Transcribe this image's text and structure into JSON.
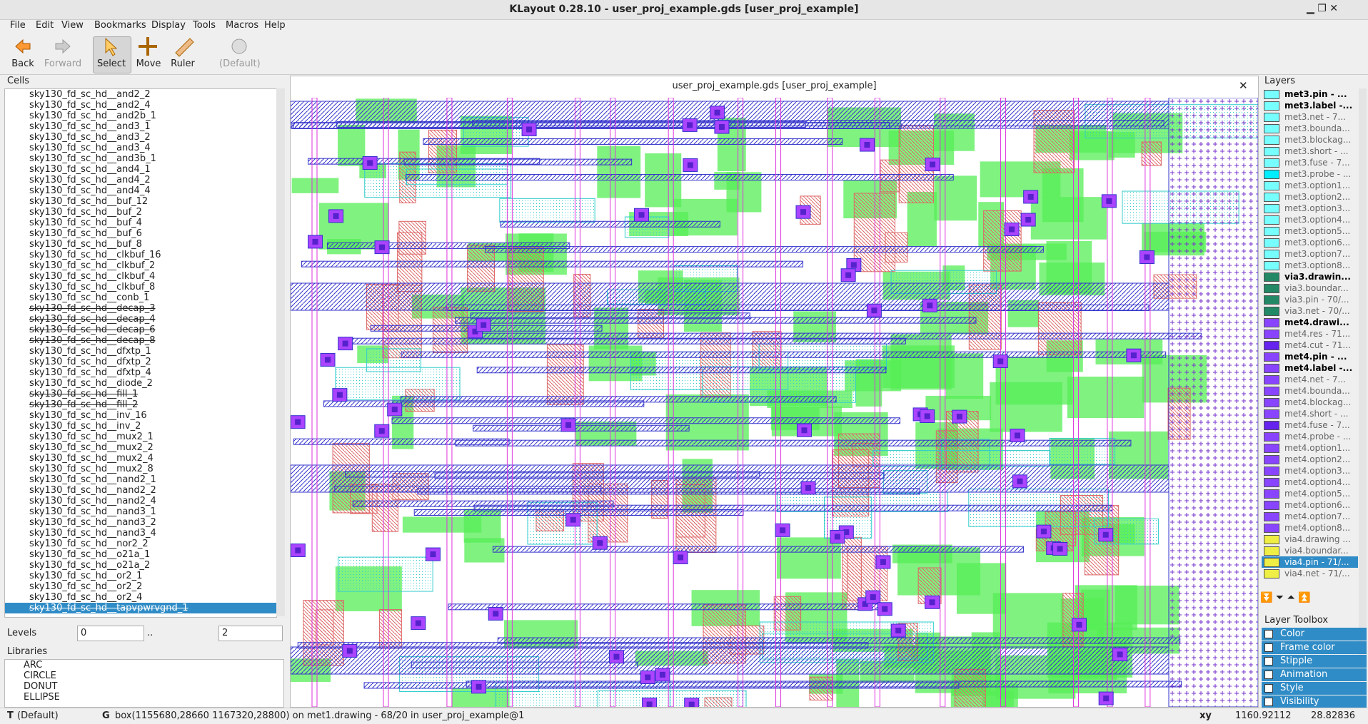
{
  "window": {
    "title": "KLayout 0.28.10 - user_proj_example.gds [user_proj_example]"
  },
  "menu": [
    "File",
    "Edit",
    "View",
    "Bookmarks",
    "Display",
    "Tools",
    "Macros",
    "Help"
  ],
  "toolbar": [
    "Back",
    "Forward",
    "Select",
    "Move",
    "Ruler",
    "(Default)"
  ],
  "cells": {
    "title": "Cells",
    "items": [
      {
        "name": "sky130_fd_sc_hd__and2_2"
      },
      {
        "name": "sky130_fd_sc_hd__and2_4"
      },
      {
        "name": "sky130_fd_sc_hd__and2b_1"
      },
      {
        "name": "sky130_fd_sc_hd__and3_1"
      },
      {
        "name": "sky130_fd_sc_hd__and3_2"
      },
      {
        "name": "sky130_fd_sc_hd__and3_4"
      },
      {
        "name": "sky130_fd_sc_hd__and3b_1"
      },
      {
        "name": "sky130_fd_sc_hd__and4_1"
      },
      {
        "name": "sky130_fd_sc_hd__and4_2"
      },
      {
        "name": "sky130_fd_sc_hd__and4_4"
      },
      {
        "name": "sky130_fd_sc_hd__buf_12"
      },
      {
        "name": "sky130_fd_sc_hd__buf_2"
      },
      {
        "name": "sky130_fd_sc_hd__buf_4"
      },
      {
        "name": "sky130_fd_sc_hd__buf_6"
      },
      {
        "name": "sky130_fd_sc_hd__buf_8"
      },
      {
        "name": "sky130_fd_sc_hd__clkbuf_16"
      },
      {
        "name": "sky130_fd_sc_hd__clkbuf_2"
      },
      {
        "name": "sky130_fd_sc_hd__clkbuf_4"
      },
      {
        "name": "sky130_fd_sc_hd__clkbuf_8"
      },
      {
        "name": "sky130_fd_sc_hd__conb_1"
      },
      {
        "name": "sky130_fd_sc_hd__decap_3",
        "struck": true
      },
      {
        "name": "sky130_fd_sc_hd__decap_4",
        "struck": true
      },
      {
        "name": "sky130_fd_sc_hd__decap_6",
        "struck": true
      },
      {
        "name": "sky130_fd_sc_hd__decap_8",
        "struck": true
      },
      {
        "name": "sky130_fd_sc_hd__dfxtp_1"
      },
      {
        "name": "sky130_fd_sc_hd__dfxtp_2"
      },
      {
        "name": "sky130_fd_sc_hd__dfxtp_4"
      },
      {
        "name": "sky130_fd_sc_hd__diode_2"
      },
      {
        "name": "sky130_fd_sc_hd__fill_1",
        "struck": true
      },
      {
        "name": "sky130_fd_sc_hd__fill_2",
        "struck": true
      },
      {
        "name": "sky130_fd_sc_hd__inv_16"
      },
      {
        "name": "sky130_fd_sc_hd__inv_2"
      },
      {
        "name": "sky130_fd_sc_hd__mux2_1"
      },
      {
        "name": "sky130_fd_sc_hd__mux2_2"
      },
      {
        "name": "sky130_fd_sc_hd__mux2_4"
      },
      {
        "name": "sky130_fd_sc_hd__mux2_8"
      },
      {
        "name": "sky130_fd_sc_hd__nand2_1"
      },
      {
        "name": "sky130_fd_sc_hd__nand2_2"
      },
      {
        "name": "sky130_fd_sc_hd__nand2_4"
      },
      {
        "name": "sky130_fd_sc_hd__nand3_1"
      },
      {
        "name": "sky130_fd_sc_hd__nand3_2"
      },
      {
        "name": "sky130_fd_sc_hd__nand3_4"
      },
      {
        "name": "sky130_fd_sc_hd__nor2_2"
      },
      {
        "name": "sky130_fd_sc_hd__o21a_1"
      },
      {
        "name": "sky130_fd_sc_hd__o21a_2"
      },
      {
        "name": "sky130_fd_sc_hd__or2_1"
      },
      {
        "name": "sky130_fd_sc_hd__or2_2"
      },
      {
        "name": "sky130_fd_sc_hd__or2_4"
      },
      {
        "name": "sky130_fd_sc_hd__tapvpwrvgnd_1",
        "struck": true,
        "selected": true
      }
    ]
  },
  "levels": {
    "label": "Levels",
    "from": "0",
    "sep": "..",
    "to": "2"
  },
  "libraries": {
    "title": "Libraries",
    "items": [
      "ARC",
      "CIRCLE",
      "DONUT",
      "ELLIPSE"
    ]
  },
  "view": {
    "title": "user_proj_example.gds [user_proj_example]"
  },
  "layers": {
    "title": "Layers",
    "items": [
      {
        "name": "met3.pin - ...",
        "color": "#7ff",
        "bold": true
      },
      {
        "name": "met3.label -...",
        "color": "#7ff",
        "bold": true
      },
      {
        "name": "met3.net - 7...",
        "color": "#7ff"
      },
      {
        "name": "met3.bounda...",
        "color": "#7ff"
      },
      {
        "name": "met3.blockag...",
        "color": "#7ff"
      },
      {
        "name": "met3.short - ...",
        "color": "#7ff"
      },
      {
        "name": "met3.fuse - 7...",
        "color": "#7ff"
      },
      {
        "name": "met3.probe - ...",
        "color": "#0ef"
      },
      {
        "name": "met3.option1...",
        "color": "#7ff"
      },
      {
        "name": "met3.option2...",
        "color": "#7ff"
      },
      {
        "name": "met3.option3...",
        "color": "#7ff"
      },
      {
        "name": "met3.option4...",
        "color": "#7ff"
      },
      {
        "name": "met3.option5...",
        "color": "#7ff"
      },
      {
        "name": "met3.option6...",
        "color": "#7ff"
      },
      {
        "name": "met3.option7...",
        "color": "#7ff"
      },
      {
        "name": "met3.option8...",
        "color": "#7ff"
      },
      {
        "name": "via3.drawin...",
        "color": "#286",
        "bold": true
      },
      {
        "name": "via3.boundar...",
        "color": "#286"
      },
      {
        "name": "via3.pin - 70/...",
        "color": "#286"
      },
      {
        "name": "via3.net - 70/...",
        "color": "#286"
      },
      {
        "name": "met4.drawi...",
        "color": "#84f",
        "bold": true
      },
      {
        "name": "met4.res - 71...",
        "color": "#84f"
      },
      {
        "name": "met4.cut - 71...",
        "color": "#62e"
      },
      {
        "name": "met4.pin - ...",
        "color": "#84f",
        "bold": true
      },
      {
        "name": "met4.label -...",
        "color": "#84f",
        "bold": true
      },
      {
        "name": "met4.net - 7...",
        "color": "#84f"
      },
      {
        "name": "met4.bounda...",
        "color": "#84f"
      },
      {
        "name": "met4.blockag...",
        "color": "#84f"
      },
      {
        "name": "met4.short - ...",
        "color": "#84f"
      },
      {
        "name": "met4.fuse - 7...",
        "color": "#62e"
      },
      {
        "name": "met4.probe - ...",
        "color": "#84f"
      },
      {
        "name": "met4.option1...",
        "color": "#84f"
      },
      {
        "name": "met4.option2...",
        "color": "#84f"
      },
      {
        "name": "met4.option3...",
        "color": "#84f"
      },
      {
        "name": "met4.option4...",
        "color": "#84f"
      },
      {
        "name": "met4.option5...",
        "color": "#84f"
      },
      {
        "name": "met4.option6...",
        "color": "#84f"
      },
      {
        "name": "met4.option7...",
        "color": "#84f"
      },
      {
        "name": "met4.option8...",
        "color": "#84f"
      },
      {
        "name": "via4.drawing ...",
        "color": "#ee4"
      },
      {
        "name": "via4.boundar...",
        "color": "#ee4"
      },
      {
        "name": "via4.pin - 71/...",
        "color": "#ee4",
        "selected": true
      },
      {
        "name": "via4.net - 71/...",
        "color": "#ee4"
      }
    ]
  },
  "layer_toolbox": {
    "title": "Layer Toolbox",
    "items": [
      "Color",
      "Frame color",
      "Stipple",
      "Animation",
      "Style",
      "Visibility"
    ]
  },
  "status": {
    "mode": "T",
    "default": "(Default)",
    "grid": "G",
    "message": "box(1155680,28660 1167320,28800) on met1.drawing - 68/20 in user_proj_example@1",
    "xy_label": "xy",
    "x": "1160.92112",
    "y": "28.82836"
  }
}
